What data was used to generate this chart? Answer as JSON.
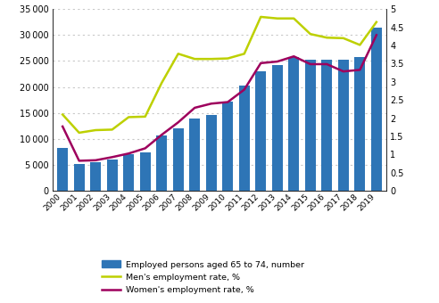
{
  "years": [
    2000,
    2001,
    2002,
    2003,
    2004,
    2005,
    2006,
    2007,
    2008,
    2009,
    2010,
    2011,
    2012,
    2013,
    2014,
    2015,
    2016,
    2017,
    2018,
    2019
  ],
  "employed_number": [
    8200,
    5200,
    5500,
    6100,
    7100,
    7400,
    10600,
    12000,
    14000,
    14700,
    17200,
    20200,
    23000,
    24200,
    25700,
    25200,
    25200,
    25300,
    25700,
    31500
  ],
  "men_rate_left": [
    14700,
    11200,
    11700,
    11800,
    14200,
    14300,
    20800,
    26400,
    25400,
    25400,
    25500,
    26400,
    33500,
    33200,
    33200,
    30200,
    29500,
    29400,
    28100,
    32500
  ],
  "women_rate_left": [
    12400,
    5800,
    5900,
    6500,
    7200,
    8200,
    10800,
    13200,
    16000,
    16800,
    17100,
    19500,
    24600,
    24900,
    25900,
    24400,
    24400,
    23000,
    23300,
    30000
  ],
  "bar_color": "#2e75b6",
  "men_rate_color": "#bdd000",
  "women_rate_color": "#9e005d",
  "left_ylim": [
    0,
    35000
  ],
  "right_ylim": [
    0,
    5
  ],
  "scale_factor": 7000,
  "left_yticks": [
    0,
    5000,
    10000,
    15000,
    20000,
    25000,
    30000,
    35000
  ],
  "right_yticks": [
    0,
    0.5,
    1.0,
    1.5,
    2.0,
    2.5,
    3.0,
    3.5,
    4.0,
    4.5,
    5.0
  ],
  "legend_labels": [
    "Employed persons aged 65 to 74, number",
    "Men's employment rate, %",
    "Women's employment rate, %"
  ],
  "grid_color": "#c8c8c8",
  "figsize": [
    4.92,
    3.4
  ],
  "dpi": 100
}
